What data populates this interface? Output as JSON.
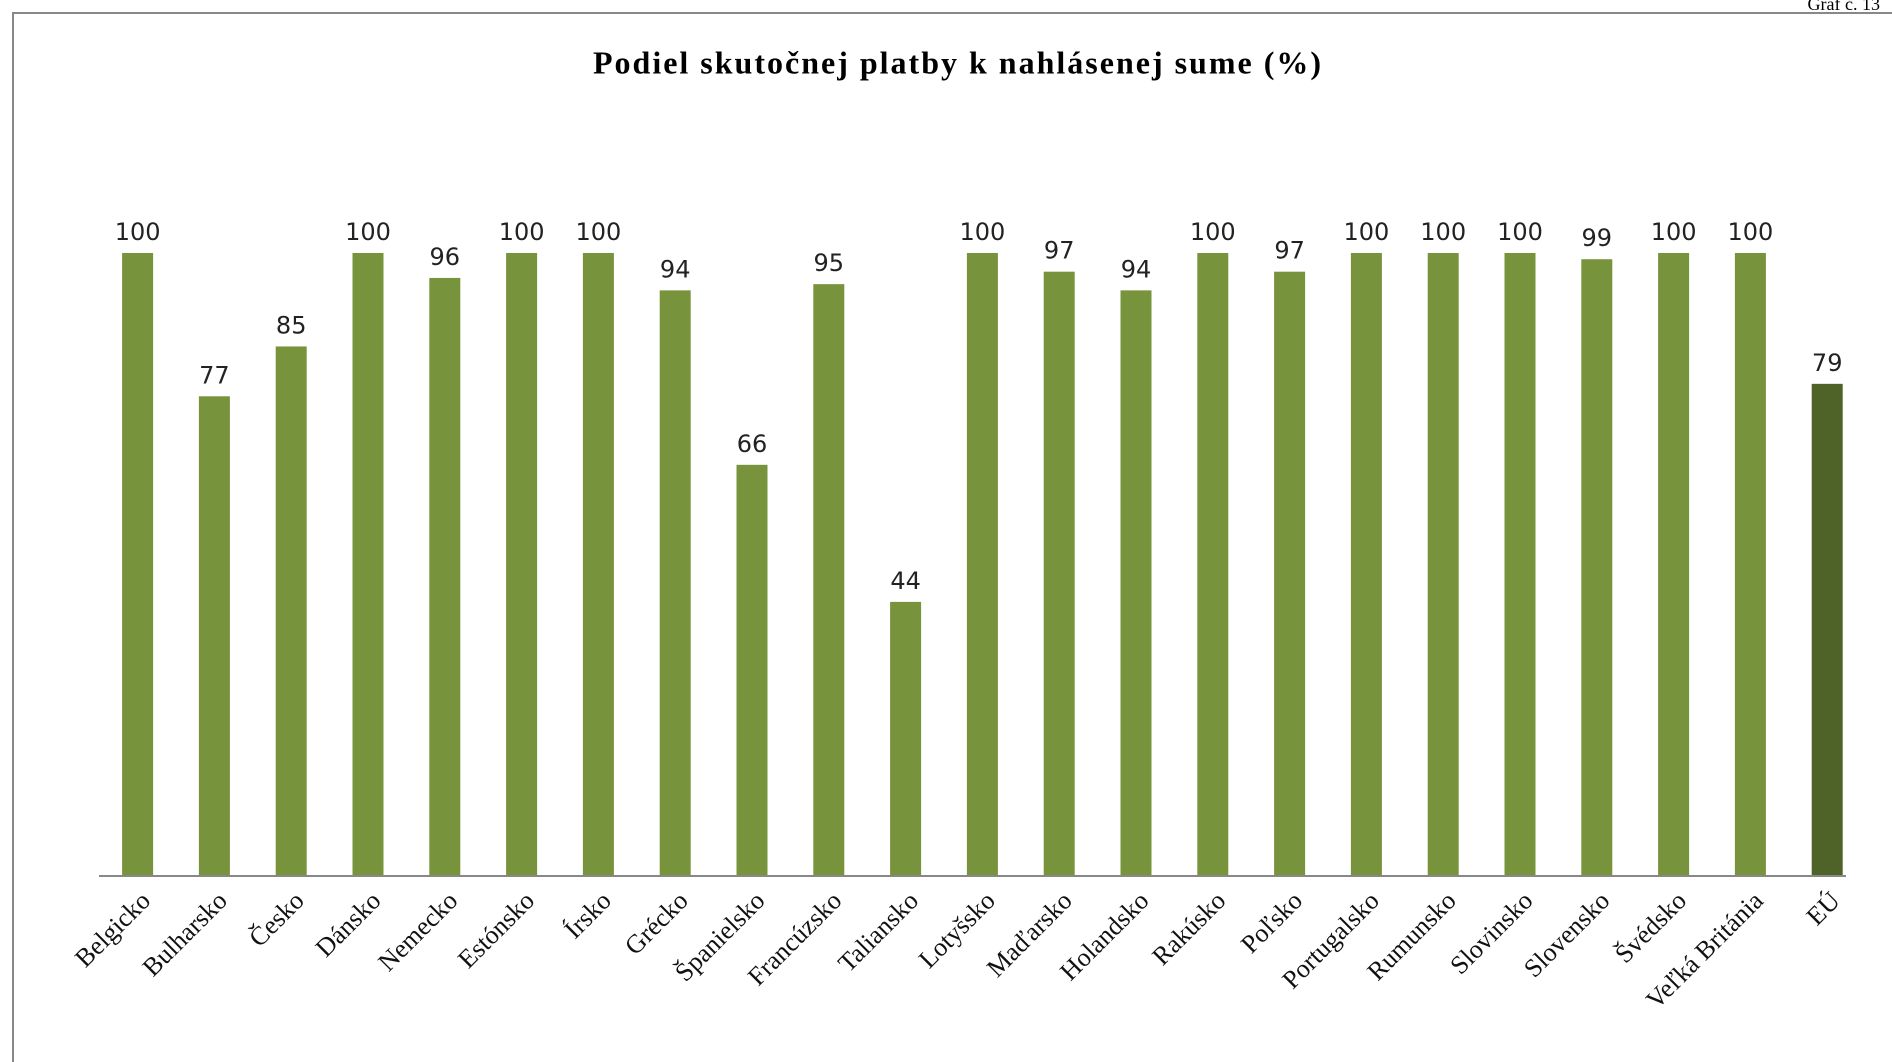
{
  "chart_data": {
    "type": "bar",
    "corner_label": "Graf č. 13",
    "title": "Podiel skutočnej platby k nahlásenej sume (%)",
    "categories": [
      "Belgicko",
      "Bulharsko",
      "Česko",
      "Dánsko",
      "Nemecko",
      "Estónsko",
      "Írsko",
      "Grécko",
      "Španielsko",
      "Francúzsko",
      "Taliansko",
      "Lotyšsko",
      "Maďarsko",
      "Holandsko",
      "Rakúsko",
      "Poľsko",
      "Portugalsko",
      "Rumunsko",
      "Slovinsko",
      "Slovensko",
      "Švédsko",
      "Veľká Británia",
      "EÚ"
    ],
    "values": [
      100,
      77,
      85,
      100,
      96,
      100,
      100,
      94,
      66,
      95,
      44,
      100,
      97,
      94,
      100,
      97,
      100,
      100,
      100,
      99,
      100,
      100,
      79
    ],
    "colors": [
      "#77933c",
      "#77933c",
      "#77933c",
      "#77933c",
      "#77933c",
      "#77933c",
      "#77933c",
      "#77933c",
      "#77933c",
      "#77933c",
      "#77933c",
      "#77933c",
      "#77933c",
      "#77933c",
      "#77933c",
      "#77933c",
      "#77933c",
      "#77933c",
      "#77933c",
      "#77933c",
      "#77933c",
      "#77933c",
      "#4f6228"
    ],
    "ylim": [
      0,
      100
    ]
  }
}
